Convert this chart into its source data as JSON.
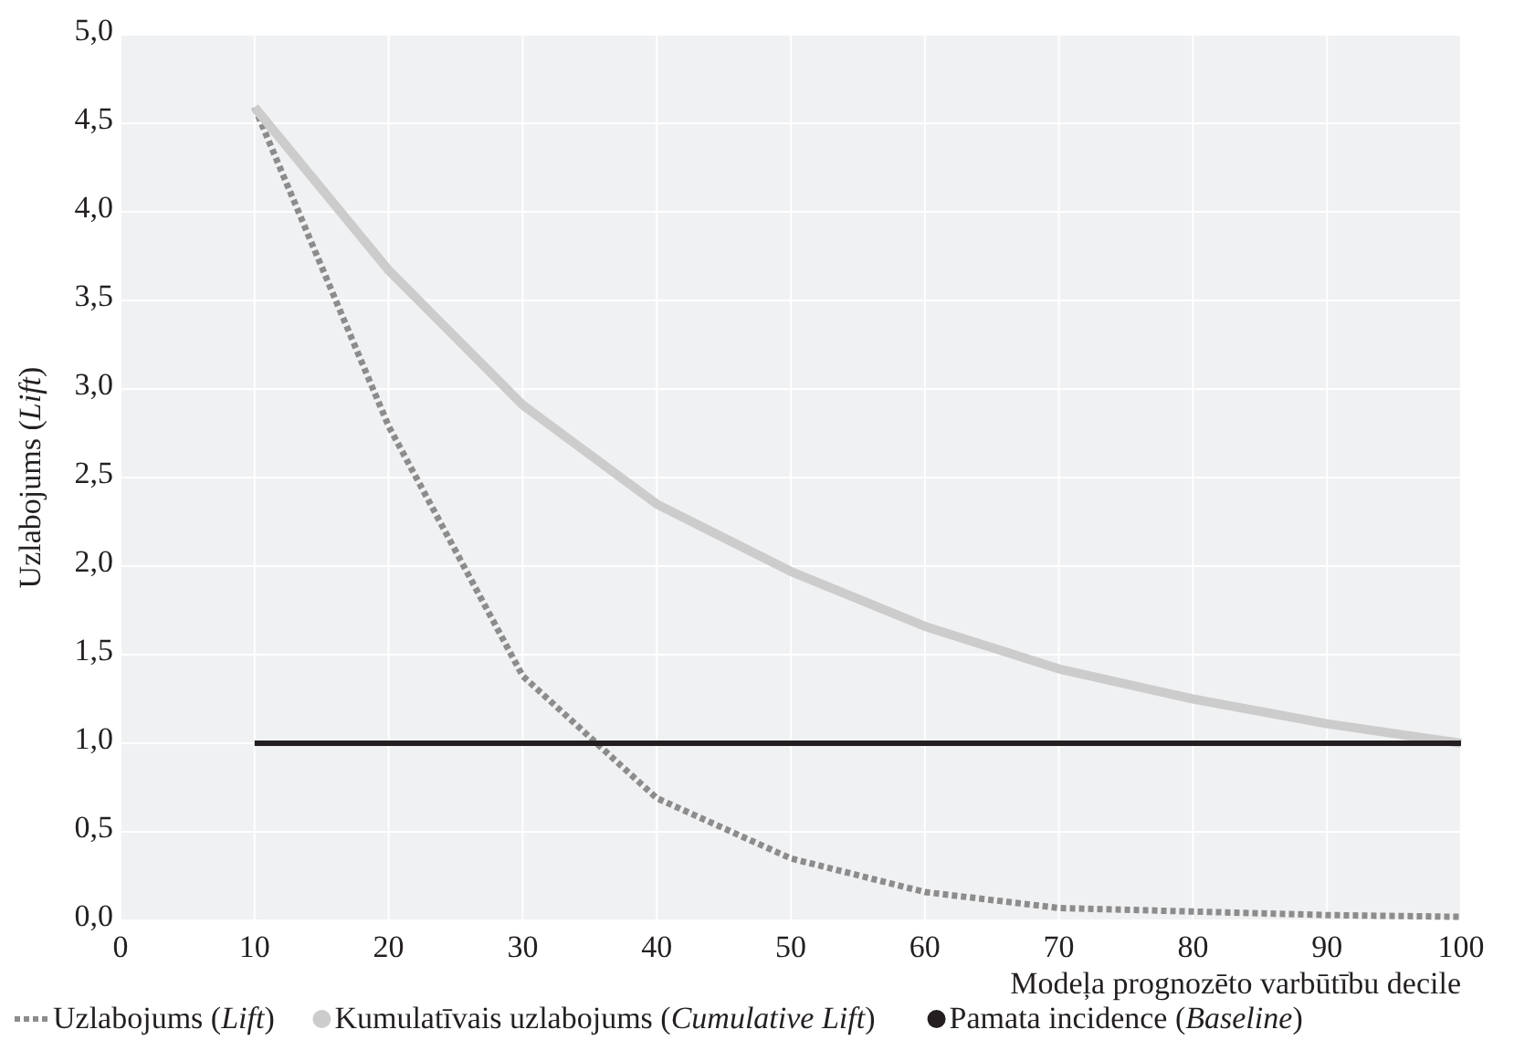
{
  "chart_data": {
    "type": "line",
    "xlabel": "Modeļa prognozēto varbūtību decile",
    "ylabel": "Uzlabojums (Lift)",
    "x": [
      10,
      20,
      30,
      40,
      50,
      60,
      70,
      80,
      90,
      100
    ],
    "series": [
      {
        "name": "Uzlabojums (Lift)",
        "color": "#8c8c8c",
        "line_style": "dotted",
        "values": [
          4.59,
          2.79,
          1.38,
          0.69,
          0.35,
          0.16,
          0.07,
          0.05,
          0.03,
          0.02
        ]
      },
      {
        "name": "Kumulatīvais uzlabojums (Cumulative Lift)",
        "color": "#cccccc",
        "line_style": "solid",
        "values": [
          4.59,
          3.67,
          2.91,
          2.35,
          1.97,
          1.66,
          1.42,
          1.25,
          1.11,
          1.0
        ]
      },
      {
        "name": "Pamata incidence (Baseline)",
        "color": "#231f20",
        "line_style": "solid",
        "values": [
          1,
          1,
          1,
          1,
          1,
          1,
          1,
          1,
          1,
          1
        ]
      }
    ],
    "xlim": [
      0,
      100
    ],
    "xticks": [
      0,
      10,
      20,
      30,
      40,
      50,
      60,
      70,
      80,
      90,
      100
    ],
    "ylim": [
      0,
      5
    ],
    "yticks": [
      {
        "value": 0,
        "label": "0,0"
      },
      {
        "value": 0.5,
        "label": "0,5"
      },
      {
        "value": 1,
        "label": "1,0"
      },
      {
        "value": 1.5,
        "label": "1,5"
      },
      {
        "value": 2,
        "label": "2,0"
      },
      {
        "value": 2.5,
        "label": "2,5"
      },
      {
        "value": 3,
        "label": "3,0"
      },
      {
        "value": 3.5,
        "label": "3,5"
      },
      {
        "value": 4,
        "label": "4,0"
      },
      {
        "value": 4.5,
        "label": "4,5"
      },
      {
        "value": 5,
        "label": "5,0"
      }
    ],
    "grid": true,
    "legend": "bottom",
    "marker": "none"
  }
}
